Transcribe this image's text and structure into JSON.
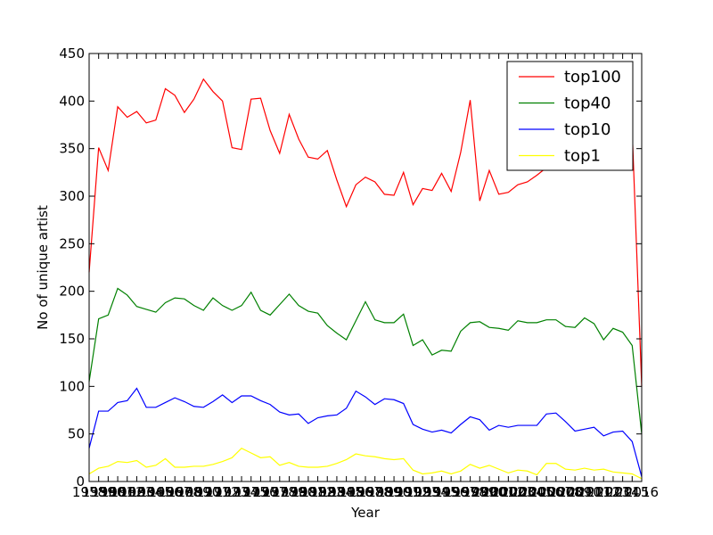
{
  "chart_data": {
    "type": "line",
    "xlabel": "Year",
    "ylabel": "No of unique artist",
    "xlim": [
      1958,
      2016
    ],
    "ylim": [
      0,
      450
    ],
    "yticks": [
      0,
      50,
      100,
      150,
      200,
      250,
      300,
      350,
      400,
      450
    ],
    "x": [
      1958,
      1959,
      1960,
      1961,
      1962,
      1963,
      1964,
      1965,
      1966,
      1967,
      1968,
      1969,
      1970,
      1971,
      1972,
      1973,
      1974,
      1975,
      1976,
      1977,
      1978,
      1979,
      1980,
      1981,
      1982,
      1983,
      1984,
      1985,
      1986,
      1987,
      1988,
      1989,
      1990,
      1991,
      1992,
      1993,
      1994,
      1995,
      1996,
      1997,
      1998,
      1999,
      2000,
      2001,
      2002,
      2003,
      2004,
      2005,
      2006,
      2007,
      2008,
      2009,
      2010,
      2011,
      2012,
      2013,
      2014,
      2015,
      2016
    ],
    "xtick_labels": [
      "1958",
      "1959",
      "1960",
      "1961",
      "1962",
      "1963",
      "1964",
      "1965",
      "1966",
      "1967",
      "1968",
      "1969",
      "1970",
      "1971",
      "1972",
      "1973",
      "1974",
      "1975",
      "1976",
      "1977",
      "1978",
      "1979",
      "1980",
      "1981",
      "1982",
      "1983",
      "1984",
      "1985",
      "1986",
      "1987",
      "1988",
      "1989",
      "1990",
      "1991",
      "1992",
      "1993",
      "1994",
      "1995",
      "1996",
      "1997",
      "1998",
      "1999",
      "2000",
      "2001",
      "2002",
      "2003",
      "2004",
      "2005",
      "2006",
      "2007",
      "2008",
      "2009",
      "2010",
      "2011",
      "2012",
      "2013",
      "2014",
      "2015",
      "2016"
    ],
    "legend_position": "top-right",
    "grid": false,
    "series": [
      {
        "name": "top100",
        "color": "#ff0000",
        "values": [
          220,
          351,
          327,
          394,
          383,
          389,
          377,
          380,
          413,
          406,
          388,
          402,
          423,
          410,
          400,
          351,
          349,
          402,
          403,
          369,
          345,
          386,
          360,
          341,
          339,
          348,
          317,
          289,
          312,
          320,
          315,
          302,
          301,
          325,
          291,
          308,
          306,
          324,
          305,
          346,
          401,
          295,
          327,
          302,
          304,
          312,
          315,
          322,
          330,
          336,
          345,
          350,
          355,
          362,
          370,
          385,
          392,
          370,
          100
        ]
      },
      {
        "name": "top40",
        "color": "#008000",
        "values": [
          105,
          171,
          175,
          203,
          196,
          184,
          181,
          178,
          188,
          193,
          192,
          185,
          180,
          193,
          185,
          180,
          185,
          199,
          180,
          175,
          186,
          197,
          185,
          179,
          177,
          164,
          156,
          149,
          169,
          189,
          170,
          167,
          167,
          176,
          143,
          149,
          133,
          138,
          137,
          158,
          167,
          168,
          162,
          161,
          159,
          169,
          167,
          167,
          170,
          170,
          163,
          162,
          172,
          166,
          149,
          161,
          157,
          143,
          50
        ]
      },
      {
        "name": "top10",
        "color": "#0000ff",
        "values": [
          35,
          74,
          74,
          83,
          85,
          98,
          78,
          78,
          83,
          88,
          84,
          79,
          78,
          84,
          91,
          83,
          90,
          90,
          85,
          81,
          73,
          70,
          71,
          61,
          67,
          69,
          70,
          77,
          95,
          89,
          81,
          87,
          86,
          82,
          60,
          55,
          52,
          54,
          51,
          60,
          68,
          65,
          54,
          59,
          57,
          59,
          59,
          59,
          71,
          72,
          63,
          53,
          55,
          57,
          48,
          52,
          53,
          42,
          5
        ]
      },
      {
        "name": "top1",
        "color": "#ffff00",
        "values": [
          8,
          14,
          16,
          21,
          20,
          22,
          15,
          17,
          24,
          15,
          15,
          16,
          16,
          18,
          21,
          25,
          35,
          30,
          25,
          26,
          17,
          20,
          16,
          15,
          15,
          16,
          19,
          23,
          29,
          27,
          26,
          24,
          23,
          24,
          12,
          8,
          9,
          11,
          8,
          11,
          18,
          14,
          17,
          13,
          9,
          12,
          11,
          7,
          19,
          19,
          13,
          12,
          14,
          12,
          13,
          10,
          9,
          8,
          3
        ]
      }
    ]
  }
}
